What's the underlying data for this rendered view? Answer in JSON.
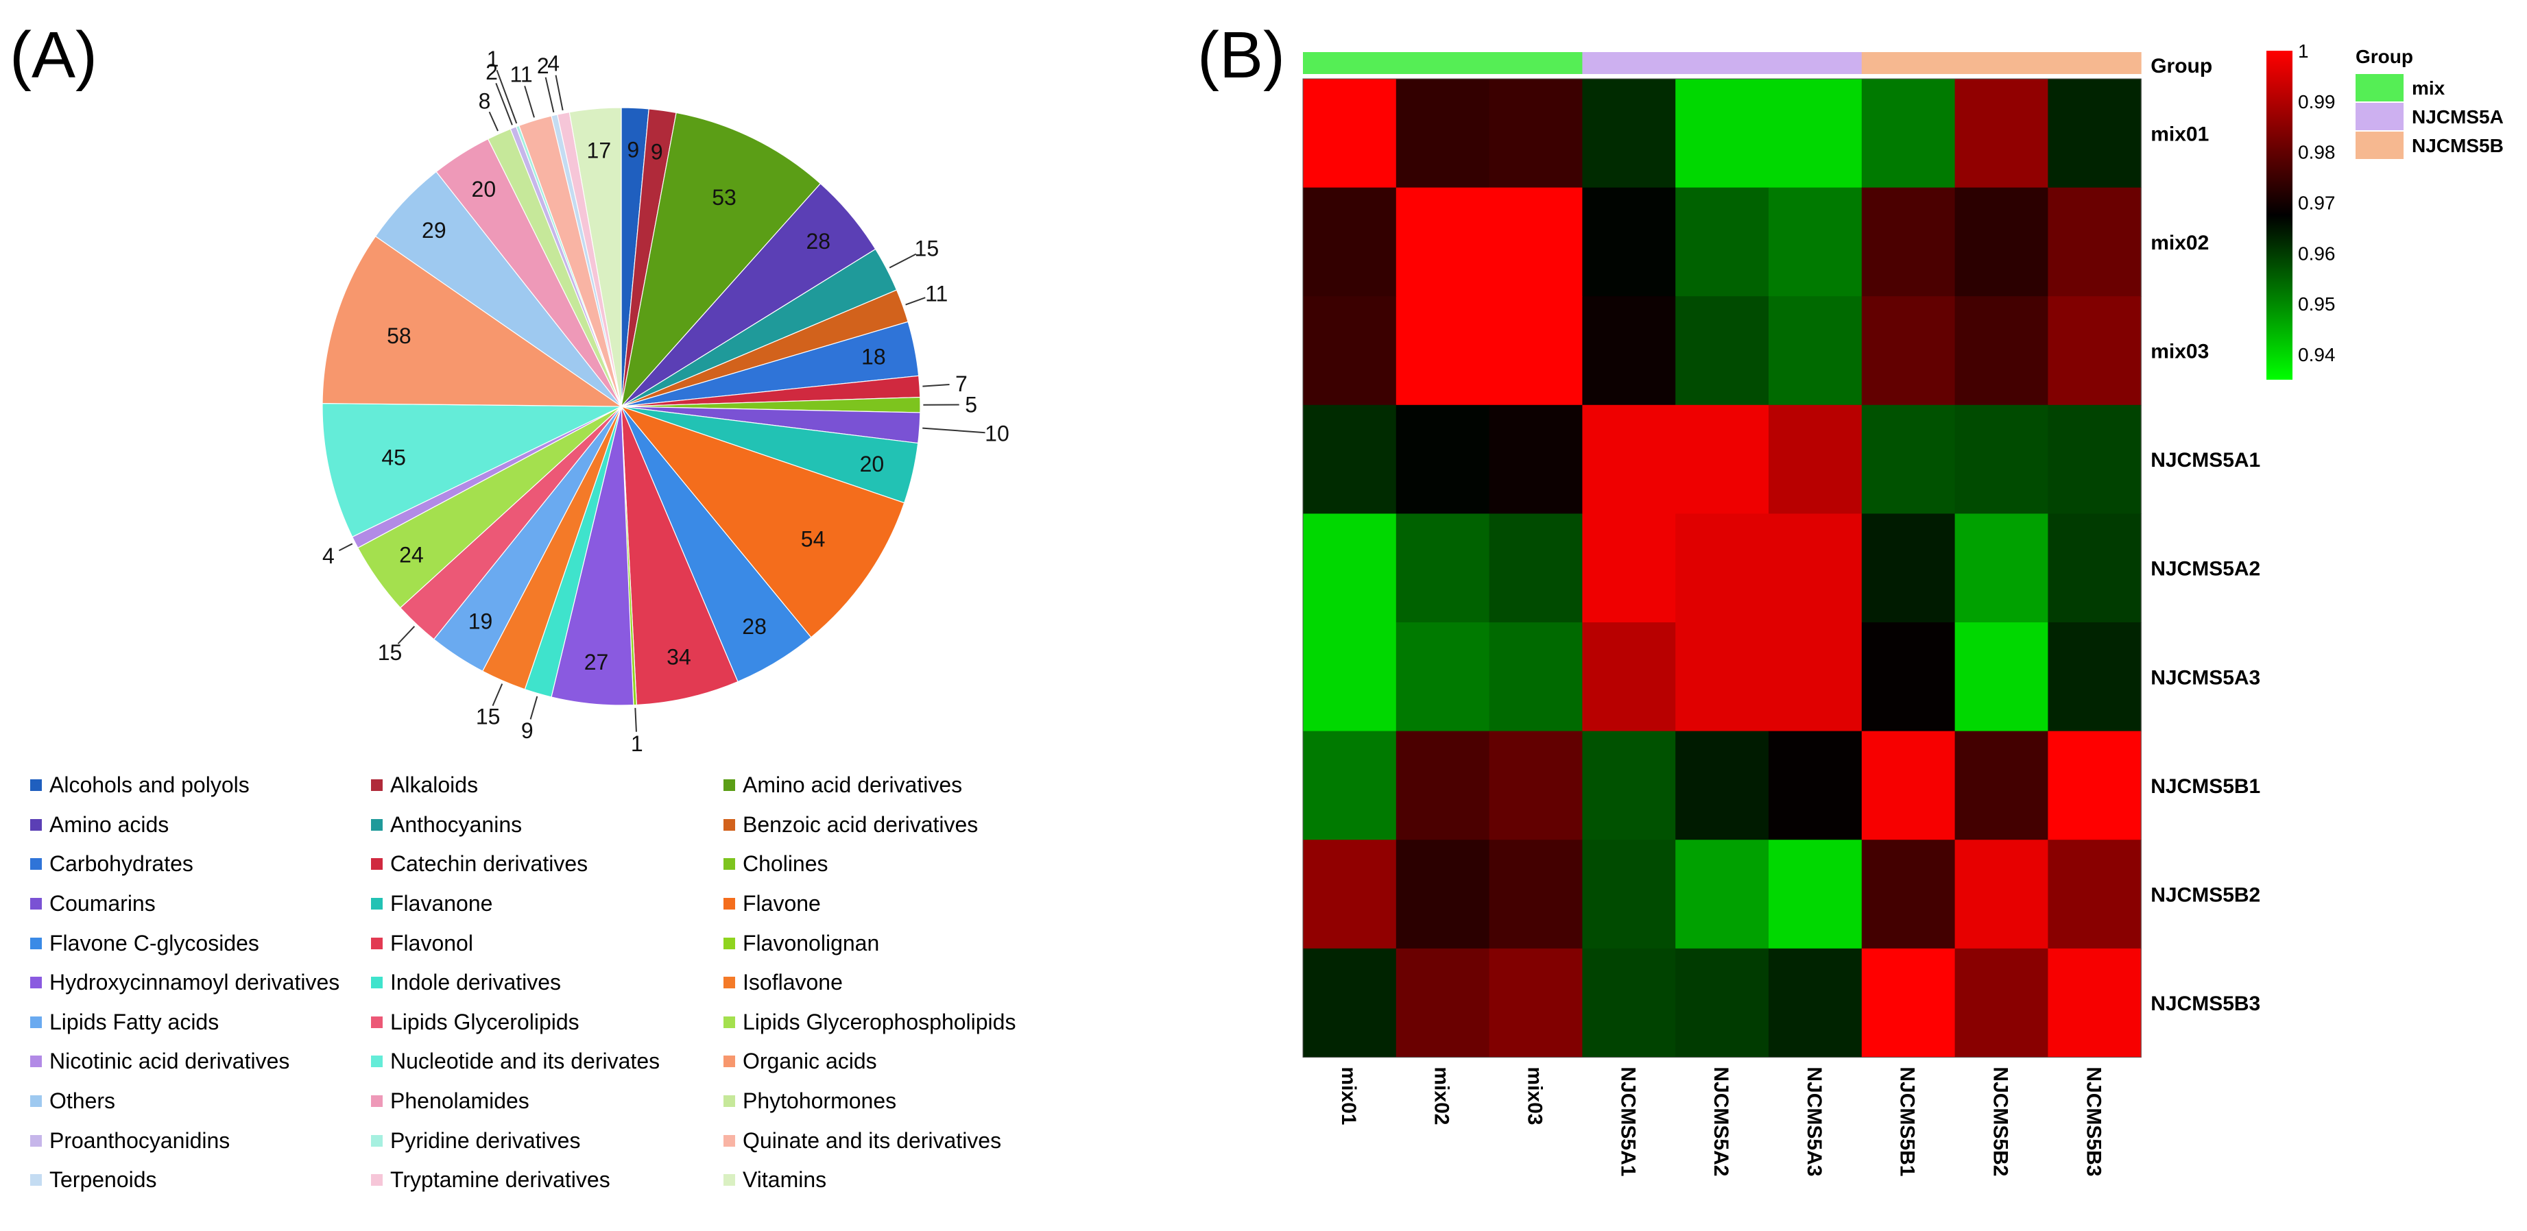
{
  "panels": {
    "a": "(A)",
    "b": "(B)"
  },
  "chart_data": [
    {
      "type": "pie",
      "title": "",
      "categories": [
        "Alcohols and polyols",
        "Alkaloids",
        "Amino acid derivatives",
        "Amino acids",
        "Anthocyanins",
        "Benzoic acid derivatives",
        "Carbohydrates",
        "Catechin derivatives",
        "Cholines",
        "Coumarins",
        "Flavanone",
        "Flavone",
        "Flavone C-glycosides",
        "Flavonol",
        "Flavonolignan",
        "Hydroxycinnamoyl derivatives",
        "Indole derivatives",
        "Isoflavone",
        "Lipids Fatty acids",
        "Lipids Glycerolipids",
        "Lipids Glycerophospholipids",
        "Nicotinic acid derivatives",
        "Nucleotide and its derivates",
        "Organic acids",
        "Others",
        "Phenolamides",
        "Phytohormones",
        "Proanthocyanidins",
        "Pyridine derivatives",
        "Quinate and its derivatives",
        "Terpenoids",
        "Tryptamine derivatives",
        "Vitamins"
      ],
      "values": [
        9,
        9,
        53,
        28,
        15,
        11,
        18,
        7,
        5,
        10,
        20,
        54,
        28,
        34,
        1,
        27,
        9,
        15,
        19,
        15,
        24,
        4,
        45,
        58,
        29,
        20,
        8,
        2,
        1,
        11,
        2,
        4,
        17
      ],
      "colors": [
        "#1f5fbf",
        "#b02a3a",
        "#5b9e16",
        "#5b3fb5",
        "#1f9a9a",
        "#d2621c",
        "#2f74d8",
        "#d0293f",
        "#7dc41e",
        "#7a52d4",
        "#22c2b4",
        "#f46d1c",
        "#3a8ae6",
        "#e23a52",
        "#8fd41f",
        "#8a5ae0",
        "#3fe3cc",
        "#f47a28",
        "#6aaaf0",
        "#ec5876",
        "#a4e04e",
        "#b28ae6",
        "#64ecd8",
        "#f7976d",
        "#9ec9f0",
        "#ee99b8",
        "#c6e89a",
        "#c6b6ea",
        "#a6f0e0",
        "#f9b4a4",
        "#c4dcf2",
        "#f6c6d8",
        "#daf0c2"
      ],
      "slice_labels": [
        "9",
        "9",
        "53",
        "28",
        "15",
        "11",
        "18",
        "7",
        "5",
        "10",
        "20",
        "54",
        "28",
        "34",
        "1",
        "27",
        "9",
        "15",
        "19",
        "15",
        "24",
        "4",
        "45",
        "58",
        "29",
        "20",
        "8",
        "2",
        "1",
        "11",
        "2",
        "4",
        "17"
      ]
    },
    {
      "type": "heatmap",
      "title": "",
      "rows": [
        "mix01",
        "mix02",
        "mix03",
        "NJCMS5A1",
        "NJCMS5A2",
        "NJCMS5A3",
        "NJCMS5B1",
        "NJCMS5B2",
        "NJCMS5B3"
      ],
      "cols": [
        "mix01",
        "mix02",
        "mix03",
        "NJCMS5A1",
        "NJCMS5A2",
        "NJCMS5A3",
        "NJCMS5B1",
        "NJCMS5B2",
        "NJCMS5B3"
      ],
      "values": [
        [
          1.0,
          0.974,
          0.975,
          0.962,
          0.94,
          0.94,
          0.952,
          0.986,
          0.963
        ],
        [
          0.974,
          1.0,
          1.0,
          0.967,
          0.955,
          0.952,
          0.977,
          0.973,
          0.981
        ],
        [
          0.975,
          1.0,
          1.0,
          0.969,
          0.958,
          0.954,
          0.98,
          0.976,
          0.984
        ],
        [
          0.962,
          0.967,
          0.969,
          0.998,
          0.998,
          0.991,
          0.957,
          0.958,
          0.959
        ],
        [
          0.94,
          0.955,
          0.958,
          0.998,
          0.996,
          0.996,
          0.964,
          0.947,
          0.96
        ],
        [
          0.94,
          0.952,
          0.954,
          0.991,
          0.996,
          0.996,
          0.968,
          0.94,
          0.963
        ],
        [
          0.952,
          0.977,
          0.98,
          0.957,
          0.964,
          0.968,
          0.999,
          0.976,
          1.0
        ],
        [
          0.986,
          0.973,
          0.976,
          0.958,
          0.947,
          0.94,
          0.976,
          0.997,
          0.985
        ],
        [
          0.963,
          0.981,
          0.984,
          0.959,
          0.96,
          0.963,
          1.0,
          0.985,
          0.999
        ]
      ],
      "col_groups": [
        "mix",
        "mix",
        "mix",
        "NJCMS5A",
        "NJCMS5A",
        "NJCMS5A",
        "NJCMS5B",
        "NJCMS5B",
        "NJCMS5B"
      ],
      "group_annotation_label": "Group",
      "group_legend": {
        "title": "Group",
        "entries": [
          {
            "name": "mix",
            "color": "#55ee55"
          },
          {
            "name": "NJCMS5A",
            "color": "#cdb0f0"
          },
          {
            "name": "NJCMS5B",
            "color": "#f6b890"
          }
        ]
      },
      "colorbar": {
        "range": [
          0.935,
          1.0
        ],
        "ticks": [
          1,
          0.99,
          0.98,
          0.97,
          0.96,
          0.95,
          0.94
        ],
        "tick_labels": [
          "1",
          "0.99",
          "0.98",
          "0.97",
          "0.96",
          "0.95",
          "0.94"
        ],
        "colors": [
          "#00ff00",
          "#000000",
          "#ff0000"
        ]
      }
    }
  ]
}
